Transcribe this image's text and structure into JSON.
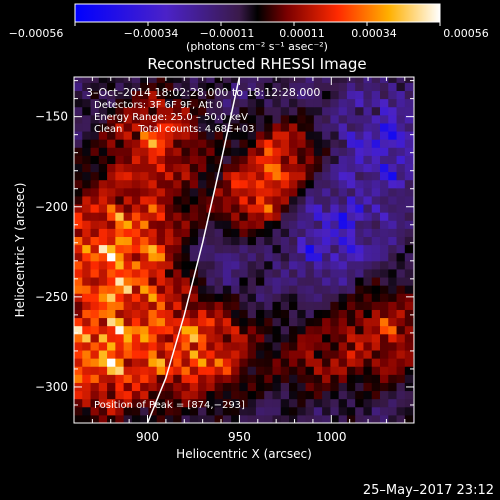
{
  "colorbar": {
    "tick_labels": [
      "−0.00056",
      "−0.00034",
      "−0.00011",
      "0.00011",
      "0.00034",
      "0.00056"
    ],
    "unit_label": "(photons cm⁻² s⁻¹ asec⁻²)"
  },
  "info": {
    "time": "3–Oct–2014 18:02:28.000 to 18:12:28.000",
    "detectors": "Detectors: 3F 6F 9F, Att 0",
    "energy": "Energy Range: 25.0 – 50.0 keV",
    "clean": "Clean     Total counts: 4.68E+03",
    "peak": "Position of Peak = [874,−293]"
  },
  "footer": {
    "date": "25–May–2017 23:12"
  },
  "chart_data": {
    "type": "heatmap",
    "title": "Reconstructed RHESSI Image",
    "xlabel": "Heliocentric X (arcsec)",
    "ylabel": "Heliocentric Y (arcsec)",
    "xlim": [
      860,
      1045
    ],
    "ylim": [
      -320,
      -128
    ],
    "x_ticks": [
      900,
      950,
      1000
    ],
    "y_ticks": [
      -150,
      -200,
      -250,
      -300
    ],
    "colorscale_range": [
      -0.00056,
      0.00056
    ],
    "peak_position": [
      874,
      -293
    ],
    "limb_curve": {
      "x": [
        950,
        940,
        930,
        920,
        910,
        900
      ],
      "y": [
        -128,
        -175,
        -220,
        -260,
        -295,
        -320
      ]
    },
    "sources": [
      {
        "x": 885,
        "y": -225,
        "amplitude": 0.00056,
        "spread": 28
      },
      {
        "x": 875,
        "y": -285,
        "amplitude": 0.00052,
        "spread": 22
      },
      {
        "x": 905,
        "y": -160,
        "amplitude": 0.0004,
        "spread": 18
      },
      {
        "x": 930,
        "y": -280,
        "amplitude": 0.00045,
        "spread": 20
      },
      {
        "x": 960,
        "y": -195,
        "amplitude": 0.0004,
        "spread": 16
      },
      {
        "x": 975,
        "y": -170,
        "amplitude": 0.00035,
        "spread": 14
      },
      {
        "x": 1030,
        "y": -270,
        "amplitude": 0.00035,
        "spread": 20
      },
      {
        "x": 990,
        "y": -285,
        "amplitude": 0.00022,
        "spread": 16
      },
      {
        "x": 1000,
        "y": -215,
        "amplitude": -0.00032,
        "spread": 18
      },
      {
        "x": 1030,
        "y": -165,
        "amplitude": -0.0003,
        "spread": 18
      },
      {
        "x": 935,
        "y": -230,
        "amplitude": -0.0002,
        "spread": 14
      }
    ]
  }
}
